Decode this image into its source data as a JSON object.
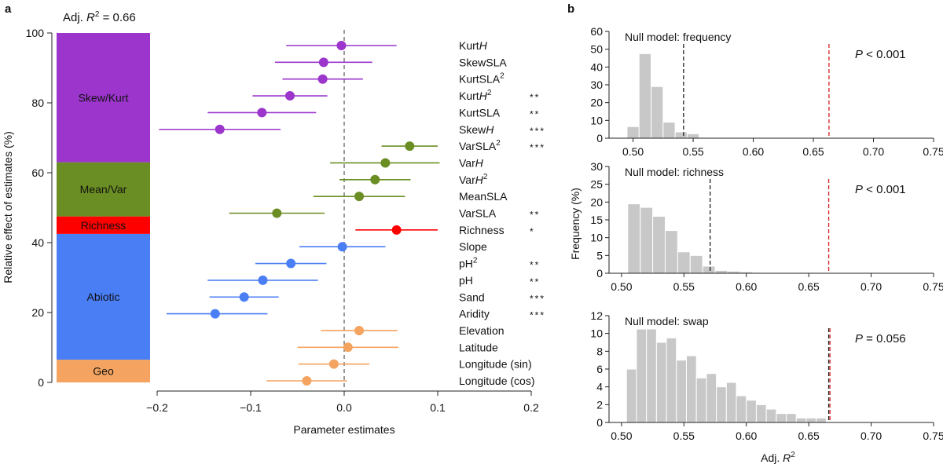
{
  "panel_a": {
    "label": "a",
    "adj_r2": {
      "prefix": "Adj. ",
      "r": "R",
      "sup": "2",
      "suffix": " = 0.66"
    },
    "ylabel": "Relative effect of estimates (%)",
    "xlabel": "Parameter estimates",
    "groups": [
      {
        "name": "Geo",
        "from": 0,
        "to": 6.5,
        "color": "#f4a460"
      },
      {
        "name": "Abiotic",
        "from": 6.5,
        "to": 42.5,
        "color": "#4a7ef5"
      },
      {
        "name": "Richness",
        "from": 42.5,
        "to": 47.5,
        "color": "#ff0000"
      },
      {
        "name": "Mean/Var",
        "from": 47.5,
        "to": 63,
        "color": "#6a8e23"
      },
      {
        "name": "Skew/Kurt",
        "from": 63,
        "to": 100,
        "color": "#9b35cc"
      }
    ]
  },
  "panel_b": {
    "label": "b",
    "ylabel": "Frequency (%)",
    "xlabel": {
      "prefix": "Adj. ",
      "r": "R",
      "sup": "2"
    }
  },
  "chart_data": [
    {
      "type": "scatter",
      "title": "",
      "xlabel": "Parameter estimates",
      "ylabel": "Relative effect of estimates (%)",
      "xlim": [
        -0.2,
        0.2
      ],
      "xticks": [
        "−0.2",
        "−0.1",
        "0.0",
        "0.1",
        "0.2"
      ],
      "ylim": [
        0,
        100
      ],
      "yticks": [
        "0",
        "20",
        "40",
        "60",
        "80",
        "100"
      ],
      "reference_line": 0,
      "points": [
        {
          "label": "KurtH",
          "italic": "H",
          "sup": "",
          "est": -0.003,
          "lo": -0.062,
          "hi": 0.056,
          "color": "#9b35cc",
          "stars": ""
        },
        {
          "label": "SkewSLA",
          "italic": "",
          "sup": "",
          "est": -0.022,
          "lo": -0.074,
          "hi": 0.03,
          "color": "#9b35cc",
          "stars": ""
        },
        {
          "label": "KurtSLA",
          "italic": "",
          "sup": "2",
          "est": -0.023,
          "lo": -0.066,
          "hi": 0.02,
          "color": "#9b35cc",
          "stars": ""
        },
        {
          "label": "KurtH",
          "italic": "H",
          "sup": "2",
          "est": -0.058,
          "lo": -0.098,
          "hi": -0.018,
          "color": "#9b35cc",
          "stars": "**"
        },
        {
          "label": "KurtSLA",
          "italic": "",
          "sup": "",
          "est": -0.088,
          "lo": -0.146,
          "hi": -0.03,
          "color": "#9b35cc",
          "stars": "**"
        },
        {
          "label": "SkewH",
          "italic": "H",
          "sup": "",
          "est": -0.133,
          "lo": -0.198,
          "hi": -0.068,
          "color": "#9b35cc",
          "stars": "***"
        },
        {
          "label": "VarSLA",
          "italic": "",
          "sup": "2",
          "est": 0.07,
          "lo": 0.04,
          "hi": 0.1,
          "color": "#6a8e23",
          "stars": "***"
        },
        {
          "label": "VarH",
          "italic": "H",
          "sup": "",
          "est": 0.044,
          "lo": -0.015,
          "hi": 0.102,
          "color": "#6a8e23",
          "stars": ""
        },
        {
          "label": "VarH",
          "italic": "H",
          "sup": "2",
          "est": 0.033,
          "lo": -0.005,
          "hi": 0.071,
          "color": "#6a8e23",
          "stars": ""
        },
        {
          "label": "MeanSLA",
          "italic": "",
          "sup": "",
          "est": 0.016,
          "lo": -0.033,
          "hi": 0.065,
          "color": "#6a8e23",
          "stars": ""
        },
        {
          "label": "VarSLA",
          "italic": "",
          "sup": "",
          "est": -0.072,
          "lo": -0.123,
          "hi": -0.021,
          "color": "#6a8e23",
          "stars": "**"
        },
        {
          "label": "Richness",
          "italic": "",
          "sup": "",
          "est": 0.056,
          "lo": 0.012,
          "hi": 0.1,
          "color": "#ff0000",
          "stars": "*"
        },
        {
          "label": "Slope",
          "italic": "",
          "sup": "",
          "est": -0.002,
          "lo": -0.048,
          "hi": 0.044,
          "color": "#4a7ef5",
          "stars": ""
        },
        {
          "label": "pH",
          "italic": "",
          "sup": "2",
          "est": -0.057,
          "lo": -0.095,
          "hi": -0.019,
          "color": "#4a7ef5",
          "stars": "**"
        },
        {
          "label": "pH",
          "italic": "",
          "sup": "",
          "est": -0.087,
          "lo": -0.146,
          "hi": -0.028,
          "color": "#4a7ef5",
          "stars": "**"
        },
        {
          "label": "Sand",
          "italic": "",
          "sup": "",
          "est": -0.107,
          "lo": -0.144,
          "hi": -0.07,
          "color": "#4a7ef5",
          "stars": "***"
        },
        {
          "label": "Aridity",
          "italic": "",
          "sup": "",
          "est": -0.138,
          "lo": -0.19,
          "hi": -0.082,
          "color": "#4a7ef5",
          "stars": "***"
        },
        {
          "label": "Elevation",
          "italic": "",
          "sup": "",
          "est": 0.016,
          "lo": -0.025,
          "hi": 0.057,
          "color": "#f4a460",
          "stars": ""
        },
        {
          "label": "Latitude",
          "italic": "",
          "sup": "",
          "est": 0.004,
          "lo": -0.05,
          "hi": 0.058,
          "color": "#f4a460",
          "stars": ""
        },
        {
          "label": "Longitude (sin)",
          "italic": "",
          "sup": "",
          "est": -0.011,
          "lo": -0.049,
          "hi": 0.027,
          "color": "#f4a460",
          "stars": ""
        },
        {
          "label": "Longitude (cos)",
          "italic": "",
          "sup": "",
          "est": -0.04,
          "lo": -0.083,
          "hi": 0.003,
          "color": "#f4a460",
          "stars": ""
        }
      ]
    },
    {
      "type": "bar",
      "title": "Null model: frequency",
      "bin_start": 0.495,
      "bin_width": 0.01,
      "values": [
        6.5,
        47.5,
        29,
        9,
        3.5,
        2.5
      ],
      "ylim": [
        0,
        60
      ],
      "yticks": [
        "0",
        "10",
        "20",
        "30",
        "40",
        "50",
        "60"
      ],
      "xlim": [
        0.48,
        0.75
      ],
      "xticks": [
        "0.50",
        "0.55",
        "0.60",
        "0.65",
        "0.70",
        "0.75"
      ],
      "null_line": 0.542,
      "observed_line": 0.663,
      "p_text": {
        "p": "P",
        "rest": " < 0.001"
      }
    },
    {
      "type": "bar",
      "title": "Null model: richness",
      "bin_start": 0.505,
      "bin_width": 0.01,
      "values": [
        19.5,
        18.5,
        16,
        12,
        6,
        5,
        2,
        0.8,
        0.6,
        0.4
      ],
      "ylim": [
        0,
        30
      ],
      "yticks": [
        "0",
        "5",
        "10",
        "15",
        "20",
        "25",
        "30"
      ],
      "xlim": [
        0.49,
        0.75
      ],
      "xticks": [
        "0.50",
        "0.55",
        "0.60",
        "0.65",
        "0.70",
        "0.75"
      ],
      "null_line": 0.571,
      "observed_line": 0.666,
      "p_text": {
        "p": "P",
        "rest": " < 0.001"
      }
    },
    {
      "type": "bar",
      "title": "Null model: swap",
      "bin_start": 0.504,
      "bin_width": 0.008,
      "values": [
        6,
        10.5,
        10.5,
        9,
        9.5,
        7,
        7.5,
        5,
        5.5,
        4,
        4.5,
        3,
        2.5,
        2,
        1.5,
        1,
        1,
        0.5,
        0.5,
        0.5
      ],
      "ylim": [
        0,
        12
      ],
      "yticks": [
        "0",
        "2",
        "4",
        "6",
        "8",
        "10",
        "12"
      ],
      "xlim": [
        0.49,
        0.75
      ],
      "xticks": [
        "0.50",
        "0.55",
        "0.60",
        "0.65",
        "0.70",
        "0.75"
      ],
      "null_line": 0.666,
      "observed_line": 0.667,
      "p_text": {
        "p": "P",
        "rest": " = 0.056"
      }
    }
  ]
}
